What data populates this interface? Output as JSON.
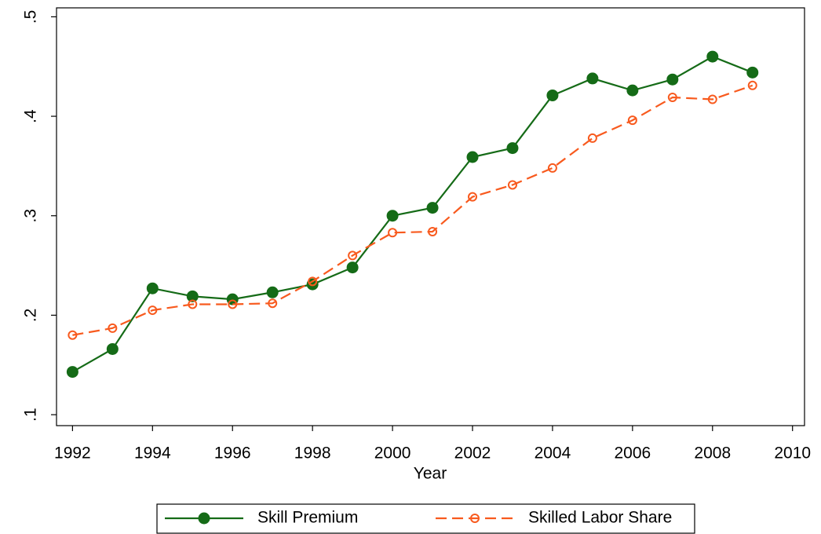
{
  "chart_data": {
    "type": "line",
    "x_label": "Year",
    "x": [
      1992,
      1993,
      1994,
      1995,
      1996,
      1997,
      1998,
      1999,
      2000,
      2001,
      2002,
      2003,
      2004,
      2005,
      2006,
      2007,
      2008,
      2009
    ],
    "series": [
      {
        "name": "Skill Premium",
        "color": "#156b17",
        "marker": "filled",
        "dash": false,
        "values": [
          0.143,
          0.166,
          0.227,
          0.219,
          0.216,
          0.223,
          0.231,
          0.248,
          0.3,
          0.308,
          0.359,
          0.368,
          0.421,
          0.438,
          0.426,
          0.437,
          0.46,
          0.444
        ]
      },
      {
        "name": "Skilled Labor Share",
        "color": "#f85a1e",
        "marker": "hollow",
        "dash": true,
        "values": [
          0.18,
          0.187,
          0.205,
          0.211,
          0.211,
          0.212,
          0.234,
          0.26,
          0.283,
          0.284,
          0.319,
          0.331,
          0.348,
          0.378,
          0.396,
          0.419,
          0.417,
          0.431
        ]
      }
    ],
    "xlim": [
      1991.6,
      2010.3
    ],
    "xticks": [
      1992,
      1994,
      1996,
      1998,
      2000,
      2002,
      2004,
      2006,
      2008,
      2010
    ],
    "ylim": [
      0.089,
      0.509
    ],
    "yticks": [
      {
        "value": 0.1,
        "label": ".1"
      },
      {
        "value": 0.2,
        "label": ".2"
      },
      {
        "value": 0.3,
        "label": ".3"
      },
      {
        "value": 0.4,
        "label": ".4"
      },
      {
        "value": 0.5,
        "label": ".5"
      }
    ],
    "grid": false,
    "legend": "bottom"
  }
}
